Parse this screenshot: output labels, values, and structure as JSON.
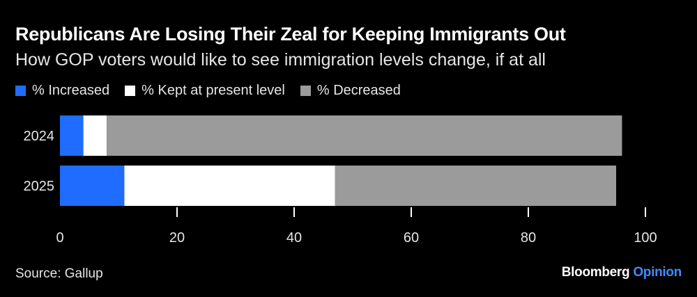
{
  "title": "Republicans Are Losing Their Zeal for Keeping Immigrants Out",
  "subtitle": "How GOP voters would like to see immigration levels change, if at all",
  "source": "Source: Gallup",
  "brand": {
    "main": "Bloomberg",
    "accent": "Opinion"
  },
  "colors": {
    "increased": "#1f6cff",
    "kept": "#ffffff",
    "decreased": "#9b9b9b",
    "axis": "#ffffff"
  },
  "chart_data": {
    "type": "bar",
    "orientation": "horizontal",
    "stacked": true,
    "categories": [
      "2024",
      "2025"
    ],
    "series": [
      {
        "name": "% Increased",
        "values": [
          4,
          11
        ]
      },
      {
        "name": "% Kept at present level",
        "values": [
          4,
          36
        ]
      },
      {
        "name": "% Decreased",
        "values": [
          88,
          48
        ]
      }
    ],
    "xlim": [
      0,
      100
    ],
    "xticks": [
      "0",
      "20",
      "40",
      "60",
      "80",
      "100"
    ],
    "legend": "top-left",
    "grid": false
  }
}
